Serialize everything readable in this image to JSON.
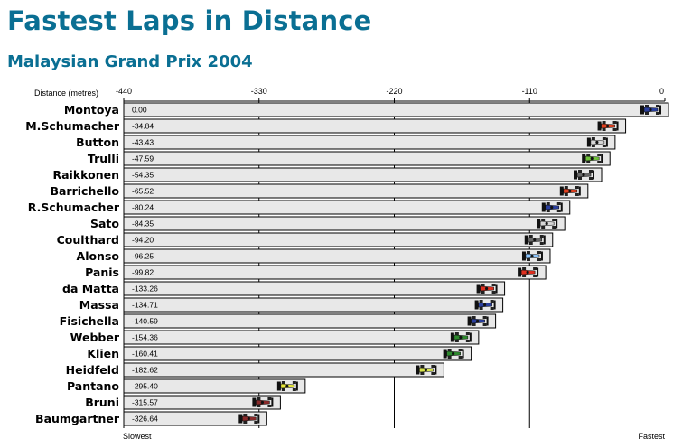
{
  "title": "Fastest Laps in Distance",
  "subtitle": "Malaysian Grand Prix 2004",
  "chart_data": {
    "type": "bar",
    "orientation": "horizontal",
    "xlabel": "Distance (metres)",
    "xlim": [
      -440,
      0
    ],
    "xticks": [
      "-440",
      "-330",
      "-220",
      "-110",
      "0"
    ],
    "grid": true,
    "left_label": "Slowest",
    "right_label": "Fastest",
    "categories": [
      "Montoya",
      "M.Schumacher",
      "Button",
      "Trulli",
      "Raikkonen",
      "Barrichello",
      "R.Schumacher",
      "Sato",
      "Coulthard",
      "Alonso",
      "Panis",
      "da Matta",
      "Massa",
      "Fisichella",
      "Webber",
      "Klien",
      "Heidfeld",
      "Pantano",
      "Bruni",
      "Baumgartner"
    ],
    "values": [
      0.0,
      -34.84,
      -43.43,
      -47.59,
      -54.35,
      -65.52,
      -80.24,
      -84.35,
      -94.2,
      -96.25,
      -99.82,
      -133.26,
      -134.71,
      -140.59,
      -154.36,
      -160.41,
      -182.62,
      -295.4,
      -315.57,
      -326.64
    ],
    "labels": [
      "0.00",
      "-34.84",
      "-43.43",
      "-47.59",
      "-54.35",
      "-65.52",
      "-80.24",
      "-84.35",
      "-94.20",
      "-96.25",
      "-99.82",
      "-133.26",
      "-134.71",
      "-140.59",
      "-154.36",
      "-160.41",
      "-182.62",
      "-295.40",
      "-315.57",
      "-326.64"
    ],
    "car_colors": [
      "#2a3f9e",
      "#e0401f",
      "#d7d7d7",
      "#6fc23a",
      "#6a6a6a",
      "#e0401f",
      "#2a3f9e",
      "#d7d7d7",
      "#6a6a6a",
      "#8cc6ff",
      "#e03020",
      "#e03020",
      "#2a3f9e",
      "#2a3f9e",
      "#2e8a2e",
      "#2e8a2e",
      "#d8e44a",
      "#e8e83a",
      "#8a2a2a",
      "#8a2a2a"
    ]
  }
}
